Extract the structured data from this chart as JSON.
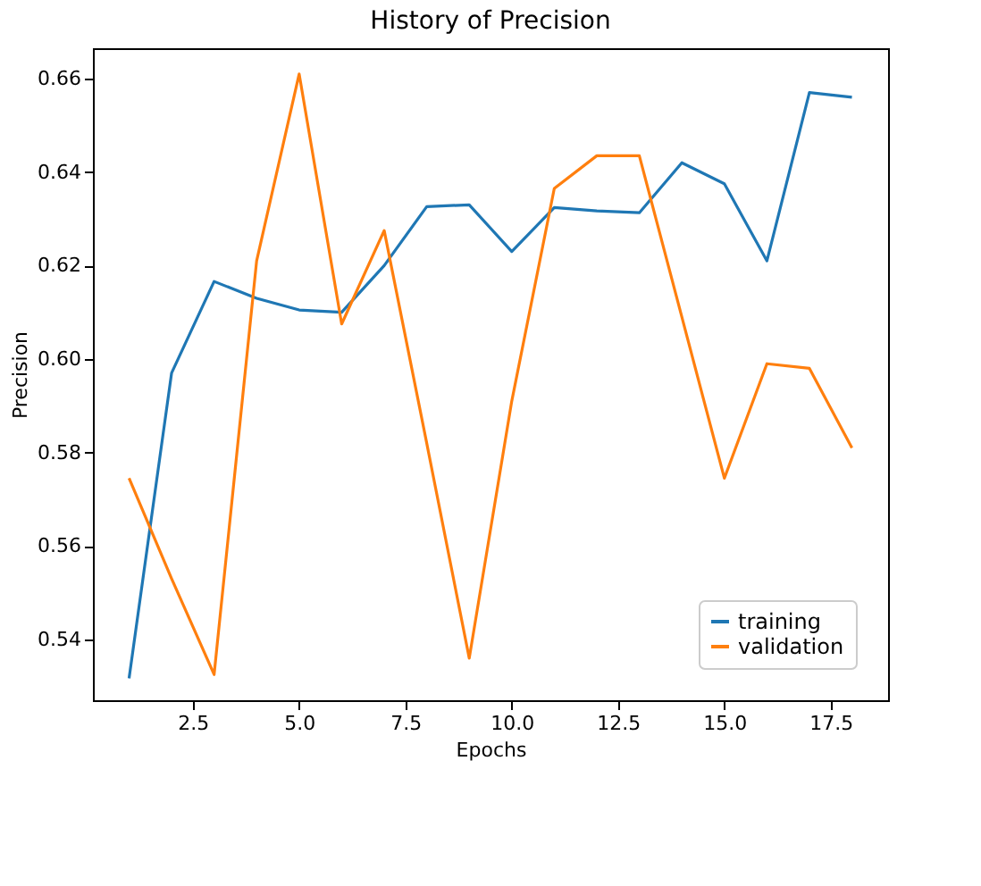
{
  "chart_data": {
    "type": "line",
    "title": "History of Precision",
    "xlabel": "Epochs",
    "ylabel": "Precision",
    "x": [
      1,
      2,
      3,
      4,
      5,
      6,
      7,
      8,
      9,
      10,
      11,
      12,
      13,
      14,
      15,
      16,
      17,
      18
    ],
    "series": [
      {
        "name": "training",
        "color": "#1f77b4",
        "values": [
          0.5317,
          0.597,
          0.6166,
          0.613,
          0.6105,
          0.61,
          0.62,
          0.6326,
          0.633,
          0.623,
          0.6324,
          0.6317,
          0.6313,
          0.642,
          0.6375,
          0.621,
          0.657,
          0.656
        ]
      },
      {
        "name": "validation",
        "color": "#ff7f0e",
        "values": [
          0.5745,
          0.553,
          0.5325,
          0.621,
          0.661,
          0.6075,
          0.6275,
          0.582,
          0.536,
          0.591,
          0.6365,
          0.6435,
          0.6435,
          0.609,
          0.5745,
          0.599,
          0.598,
          0.581
        ]
      }
    ],
    "xlim": [
      0.15,
      18.85
    ],
    "ylim": [
      0.527,
      0.6665
    ],
    "xticks": [
      {
        "value": 2.5,
        "label": "2.5"
      },
      {
        "value": 5,
        "label": "5.0"
      },
      {
        "value": 7.5,
        "label": "7.5"
      },
      {
        "value": 10,
        "label": "10.0"
      },
      {
        "value": 12.5,
        "label": "12.5"
      },
      {
        "value": 15,
        "label": "15.0"
      },
      {
        "value": 17.5,
        "label": "17.5"
      }
    ],
    "yticks": [
      0.54,
      0.56,
      {
        "value": 0.58,
        "label": "0.58"
      },
      {
        "value": 0.6,
        "label": "0.60"
      },
      {
        "value": 0.62,
        "label": "0.62"
      },
      {
        "value": 0.64,
        "label": "0.64"
      },
      {
        "value": 0.66,
        "label": "0.66"
      }
    ],
    "legend": "bottom right",
    "grid": false,
    "line_style": "solid",
    "marker": "none"
  }
}
